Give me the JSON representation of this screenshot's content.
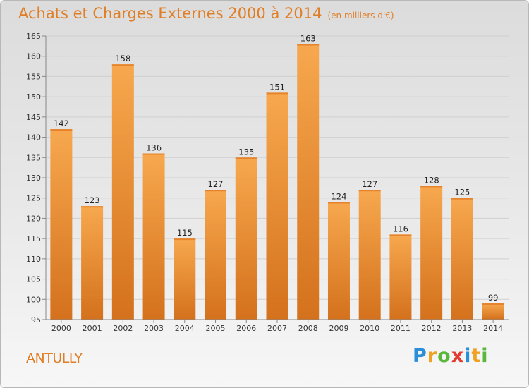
{
  "title": "Achats et Charges Externes 2000 à 2014",
  "unit_note": "(en milliers d'€)",
  "commune": "ANTULLY",
  "logo": {
    "letters": [
      "P",
      "r",
      "o",
      "x",
      "i",
      "t",
      "i"
    ],
    "colors": [
      "#2a8ed8",
      "#f0a023",
      "#59b73b",
      "#e33b2f",
      "#2a8ed8",
      "#f0a023",
      "#59b73b"
    ]
  },
  "colors": {
    "bar": "#f39a3e",
    "bar_dark": "#d06e1c",
    "title": "#e07e25"
  },
  "chart_data": {
    "type": "bar",
    "title": "Achats et Charges Externes 2000 à 2014",
    "categories": [
      "2000",
      "2001",
      "2002",
      "2003",
      "2004",
      "2005",
      "2006",
      "2007",
      "2008",
      "2009",
      "2010",
      "2011",
      "2012",
      "2013",
      "2014"
    ],
    "values": [
      142,
      123,
      158,
      136,
      115,
      127,
      135,
      151,
      163,
      124,
      127,
      116,
      128,
      125,
      99
    ],
    "ylim": [
      95,
      165
    ],
    "yticks": [
      95,
      100,
      105,
      110,
      115,
      120,
      125,
      130,
      135,
      140,
      145,
      150,
      155,
      160,
      165
    ],
    "grid": true,
    "data_labels": true
  }
}
